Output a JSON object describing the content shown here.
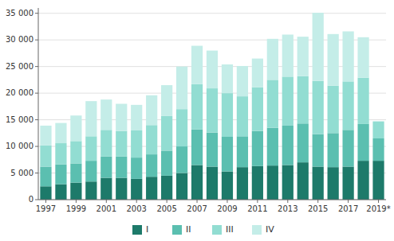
{
  "chart_data": {
    "type": "bar",
    "stacked": true,
    "grid": true,
    "legend": "bottom",
    "categories": [
      "1997",
      null,
      "1999",
      null,
      "2001",
      null,
      "2003",
      null,
      "2005",
      null,
      "2007",
      null,
      "2009",
      null,
      "2011",
      null,
      "2013",
      null,
      "2015",
      null,
      "2017",
      null,
      "2019*"
    ],
    "series": [
      {
        "name": "I",
        "color": "#1d7a6a",
        "values": [
          2500,
          2900,
          3200,
          3400,
          4100,
          4100,
          3900,
          4300,
          4500,
          5000,
          6500,
          6200,
          5300,
          6100,
          6300,
          6400,
          6500,
          7000,
          6200,
          6100,
          6200,
          7300,
          7300
        ]
      },
      {
        "name": "II",
        "color": "#5bbfb0",
        "values": [
          3700,
          3700,
          3600,
          3900,
          4000,
          4000,
          4000,
          4200,
          4700,
          5000,
          6700,
          6400,
          6500,
          5800,
          6600,
          7100,
          7400,
          7300,
          6100,
          6400,
          6900,
          6900,
          4200
        ]
      },
      {
        "name": "III",
        "color": "#92ddd2",
        "values": [
          4000,
          4000,
          4200,
          4600,
          5000,
          4800,
          5100,
          5500,
          6500,
          7000,
          8500,
          8300,
          8200,
          7500,
          8200,
          9000,
          9200,
          8900,
          10000,
          8900,
          9100,
          8700,
          3200
        ]
      },
      {
        "name": "IV",
        "color": "#c4ede8",
        "values": [
          3700,
          3800,
          4800,
          6600,
          5700,
          5100,
          4800,
          5600,
          5800,
          8000,
          7200,
          7100,
          5400,
          5700,
          5400,
          7700,
          7900,
          7400,
          12800,
          9700,
          9400,
          7600,
          0
        ]
      }
    ],
    "ylim": [
      0,
      36000
    ],
    "yticks": [
      0,
      {
        "value": 5000,
        "label": "5 000"
      },
      {
        "value": 10000,
        "label": "10 000"
      },
      {
        "value": 15000,
        "label": "15 000"
      },
      {
        "value": 20000,
        "label": "20 000"
      },
      {
        "value": 25000,
        "label": "25 000"
      },
      {
        "value": 30000,
        "label": "30 000"
      },
      {
        "value": 35000,
        "label": "35 000"
      }
    ]
  }
}
